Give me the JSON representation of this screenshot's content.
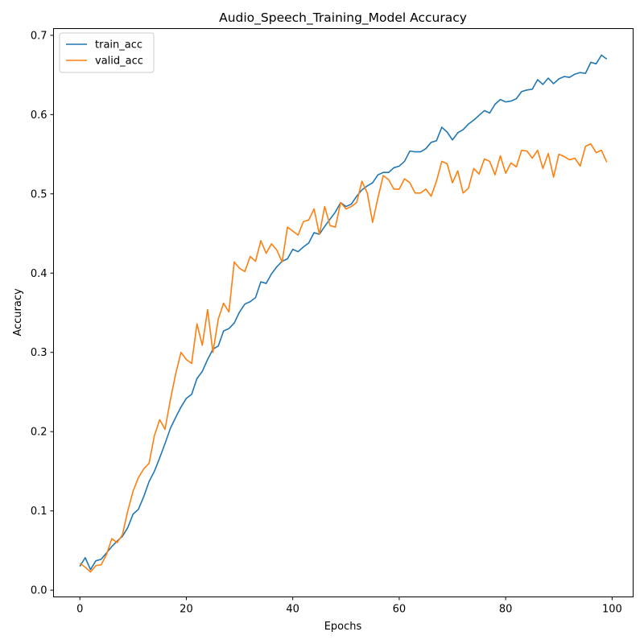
{
  "chart_data": {
    "type": "line",
    "title": "Audio_Speech_Training_Model Accuracy",
    "xlabel": "Epochs",
    "ylabel": "Accuracy",
    "xlim": [
      -4.95,
      103.95
    ],
    "ylim": [
      -0.0085,
      0.7085
    ],
    "xticks": [
      0,
      20,
      40,
      60,
      80,
      100
    ],
    "yticks": [
      0.0,
      0.1,
      0.2,
      0.3,
      0.4,
      0.5,
      0.6,
      0.7
    ],
    "xtick_labels": [
      "0",
      "20",
      "40",
      "60",
      "80",
      "100"
    ],
    "ytick_labels": [
      "0.0",
      "0.1",
      "0.2",
      "0.3",
      "0.4",
      "0.5",
      "0.6",
      "0.7"
    ],
    "grid": false,
    "legend_position": "upper-left",
    "x": [
      0,
      1,
      2,
      3,
      4,
      5,
      6,
      7,
      8,
      9,
      10,
      11,
      12,
      13,
      14,
      15,
      16,
      17,
      18,
      19,
      20,
      21,
      22,
      23,
      24,
      25,
      26,
      27,
      28,
      29,
      30,
      31,
      32,
      33,
      34,
      35,
      36,
      37,
      38,
      39,
      40,
      41,
      42,
      43,
      44,
      45,
      46,
      47,
      48,
      49,
      50,
      51,
      52,
      53,
      54,
      55,
      56,
      57,
      58,
      59,
      60,
      61,
      62,
      63,
      64,
      65,
      66,
      67,
      68,
      69,
      70,
      71,
      72,
      73,
      74,
      75,
      76,
      77,
      78,
      79,
      80,
      81,
      82,
      83,
      84,
      85,
      86,
      87,
      88,
      89,
      90,
      91,
      92,
      93,
      94,
      95,
      96,
      97,
      98,
      99
    ],
    "series": [
      {
        "name": "train_acc",
        "color": "#1f77b4",
        "values": [
          0.03,
          0.041,
          0.026,
          0.037,
          0.039,
          0.047,
          0.055,
          0.062,
          0.068,
          0.079,
          0.096,
          0.102,
          0.118,
          0.137,
          0.15,
          0.167,
          0.185,
          0.204,
          0.218,
          0.231,
          0.242,
          0.247,
          0.267,
          0.276,
          0.291,
          0.304,
          0.308,
          0.327,
          0.33,
          0.337,
          0.351,
          0.361,
          0.364,
          0.369,
          0.389,
          0.387,
          0.399,
          0.408,
          0.415,
          0.418,
          0.43,
          0.427,
          0.433,
          0.438,
          0.451,
          0.449,
          0.459,
          0.468,
          0.477,
          0.489,
          0.484,
          0.487,
          0.497,
          0.505,
          0.51,
          0.514,
          0.524,
          0.527,
          0.527,
          0.533,
          0.535,
          0.541,
          0.554,
          0.553,
          0.553,
          0.557,
          0.565,
          0.567,
          0.584,
          0.578,
          0.568,
          0.577,
          0.581,
          0.588,
          0.593,
          0.599,
          0.605,
          0.602,
          0.613,
          0.619,
          0.616,
          0.617,
          0.62,
          0.629,
          0.631,
          0.632,
          0.644,
          0.638,
          0.646,
          0.639,
          0.645,
          0.648,
          0.647,
          0.651,
          0.653,
          0.652,
          0.666,
          0.664,
          0.675,
          0.67
        ]
      },
      {
        "name": "valid_acc",
        "color": "#ff7f0e",
        "values": [
          0.034,
          0.029,
          0.023,
          0.031,
          0.032,
          0.045,
          0.065,
          0.06,
          0.07,
          0.1,
          0.125,
          0.142,
          0.153,
          0.16,
          0.195,
          0.215,
          0.203,
          0.24,
          0.273,
          0.3,
          0.291,
          0.286,
          0.336,
          0.309,
          0.354,
          0.3,
          0.342,
          0.362,
          0.351,
          0.414,
          0.406,
          0.402,
          0.421,
          0.415,
          0.441,
          0.425,
          0.437,
          0.429,
          0.414,
          0.458,
          0.453,
          0.448,
          0.465,
          0.467,
          0.481,
          0.449,
          0.484,
          0.46,
          0.458,
          0.489,
          0.481,
          0.484,
          0.489,
          0.516,
          0.501,
          0.464,
          0.495,
          0.523,
          0.518,
          0.506,
          0.506,
          0.519,
          0.514,
          0.501,
          0.501,
          0.506,
          0.497,
          0.516,
          0.541,
          0.538,
          0.514,
          0.529,
          0.501,
          0.507,
          0.532,
          0.525,
          0.544,
          0.541,
          0.524,
          0.548,
          0.526,
          0.539,
          0.534,
          0.555,
          0.554,
          0.545,
          0.555,
          0.532,
          0.551,
          0.521,
          0.55,
          0.547,
          0.543,
          0.545,
          0.535,
          0.56,
          0.563,
          0.552,
          0.555,
          0.54
        ]
      }
    ]
  }
}
